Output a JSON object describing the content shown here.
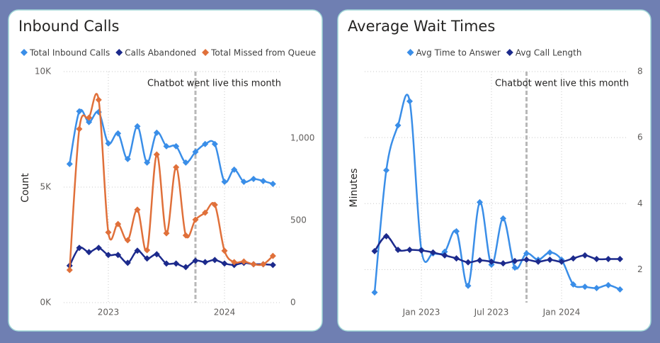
{
  "chart_data": [
    {
      "type": "line",
      "title": "Inbound Calls",
      "ylabel": "Count",
      "legend": "top-left",
      "grid": true,
      "x": [
        "2022-09",
        "2022-10",
        "2022-11",
        "2022-12",
        "2023-01",
        "2023-02",
        "2023-03",
        "2023-04",
        "2023-05",
        "2023-06",
        "2023-07",
        "2023-08",
        "2023-09",
        "2023-10",
        "2023-11",
        "2023-12",
        "2024-01",
        "2024-02",
        "2024-03",
        "2024-04",
        "2024-05",
        "2024-06"
      ],
      "xticks": [
        {
          "value": "2023-01",
          "label": "2023"
        },
        {
          "value": "2024-01",
          "label": "2024"
        }
      ],
      "ylim": [
        0,
        10000
      ],
      "yticks": [
        {
          "value": 0,
          "label": "0K"
        },
        {
          "value": 5000,
          "label": "5K"
        },
        {
          "value": 10000,
          "label": "10K"
        }
      ],
      "y2lim": [
        0,
        1405
      ],
      "y2ticks": [
        0,
        500,
        {
          "value": 1000,
          "label": "1,000"
        }
      ],
      "annotation": {
        "text": "Chatbot went live this month",
        "x": "2023-10"
      },
      "series": [
        {
          "name": "Total Inbound Calls",
          "color": "#3a8ee8",
          "values": [
            6000,
            8277,
            7815,
            8246,
            6892,
            7323,
            6215,
            7630,
            6062,
            7354,
            6769,
            6769,
            6062,
            6523,
            6862,
            6862,
            5231,
            5754,
            5231,
            5354,
            5262,
            5138
          ]
        },
        {
          "name": "Calls Abandoned",
          "color": "#1c2a8c",
          "values": [
            1600,
            2369,
            2185,
            2369,
            2062,
            2062,
            1723,
            2246,
            1908,
            2092,
            1692,
            1692,
            1538,
            1815,
            1754,
            1846,
            1692,
            1631,
            1723,
            1662,
            1662,
            1631
          ]
        },
        {
          "name": "Total Missed from Queue",
          "color": "#e0703a",
          "axis": "y2",
          "values": [
            198,
            1056,
            1125,
            1233,
            427,
            478,
            379,
            565,
            319,
            901,
            422,
            823,
            409,
            504,
            547,
            595,
            315,
            246,
            250,
            233,
            233,
            284
          ]
        }
      ]
    },
    {
      "type": "line",
      "title": "Average Wait Times",
      "ylabel": "Minutes",
      "legend": "top-center",
      "yaxis_side": "right",
      "grid": true,
      "x": [
        "2022-09",
        "2022-10",
        "2022-11",
        "2022-12",
        "2023-01",
        "2023-02",
        "2023-03",
        "2023-04",
        "2023-05",
        "2023-06",
        "2023-07",
        "2023-08",
        "2023-09",
        "2023-10",
        "2023-11",
        "2023-12",
        "2024-01",
        "2024-02",
        "2024-03",
        "2024-04",
        "2024-05",
        "2024-06"
      ],
      "xticks": [
        {
          "value": "2023-01",
          "label": "Jan 2023"
        },
        {
          "value": "2023-07",
          "label": "Jul 2023"
        },
        {
          "value": "2024-01",
          "label": "Jan 2024"
        }
      ],
      "ylim": [
        1,
        8
      ],
      "yticks": [
        2,
        4,
        6,
        8
      ],
      "annotation": {
        "text": "Chatbot went live this month",
        "x": "2023-10"
      },
      "series": [
        {
          "name": "Avg Time to Answer",
          "color": "#3a8ee8",
          "values": [
            1.31,
            5.01,
            6.37,
            7.1,
            2.6,
            2.49,
            2.54,
            3.16,
            1.51,
            4.04,
            2.15,
            3.55,
            2.06,
            2.49,
            2.3,
            2.52,
            2.3,
            1.55,
            1.48,
            1.44,
            1.53,
            1.4
          ]
        },
        {
          "name": "Avg Call Length",
          "color": "#1c2a8c",
          "values": [
            2.56,
            3.01,
            2.6,
            2.6,
            2.58,
            2.52,
            2.43,
            2.34,
            2.22,
            2.28,
            2.24,
            2.19,
            2.26,
            2.3,
            2.24,
            2.3,
            2.24,
            2.34,
            2.43,
            2.32,
            2.32,
            2.32
          ]
        }
      ]
    }
  ]
}
